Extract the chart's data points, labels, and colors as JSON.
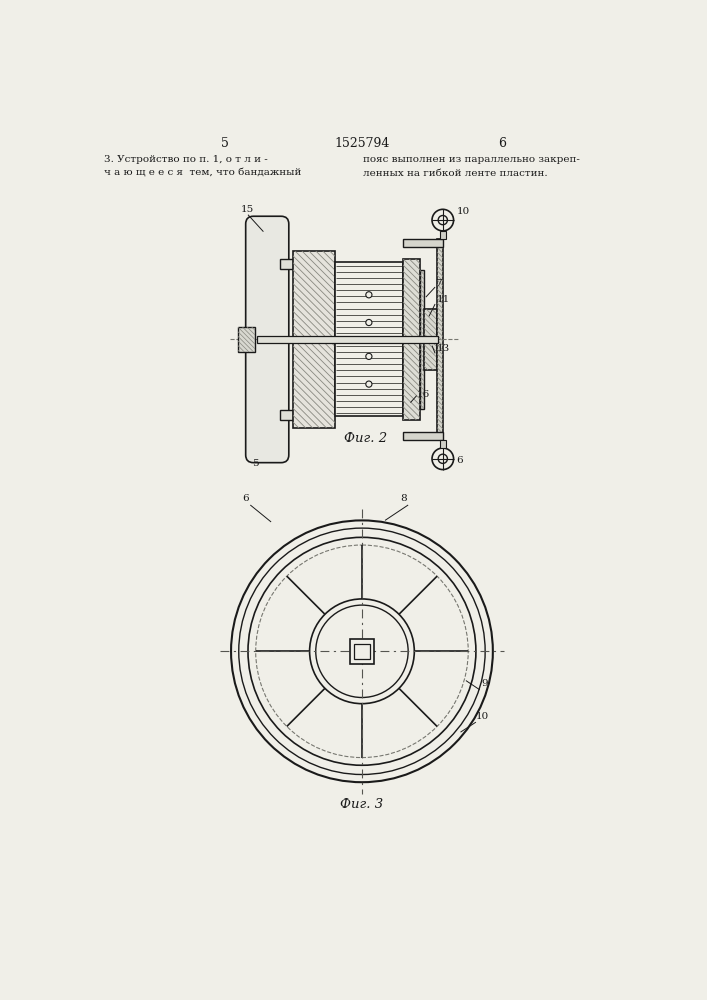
{
  "bg_color": "#f0efe8",
  "page_color": "#f0efe8",
  "header": {
    "page_left": "5",
    "patent_num": "1525794",
    "page_right": "6"
  },
  "text_block": {
    "left": "3. Устройство по п. 1, о т л и -\nч а ю щ е е с я  тем, что бандажный",
    "right": "пояс выполнен из параллельно закреп-\nленных на гибкой ленте пластин."
  },
  "fig2_label": "Фиг. 2",
  "fig3_label": "Фиг. 3",
  "line_color": "#1a1a1a"
}
